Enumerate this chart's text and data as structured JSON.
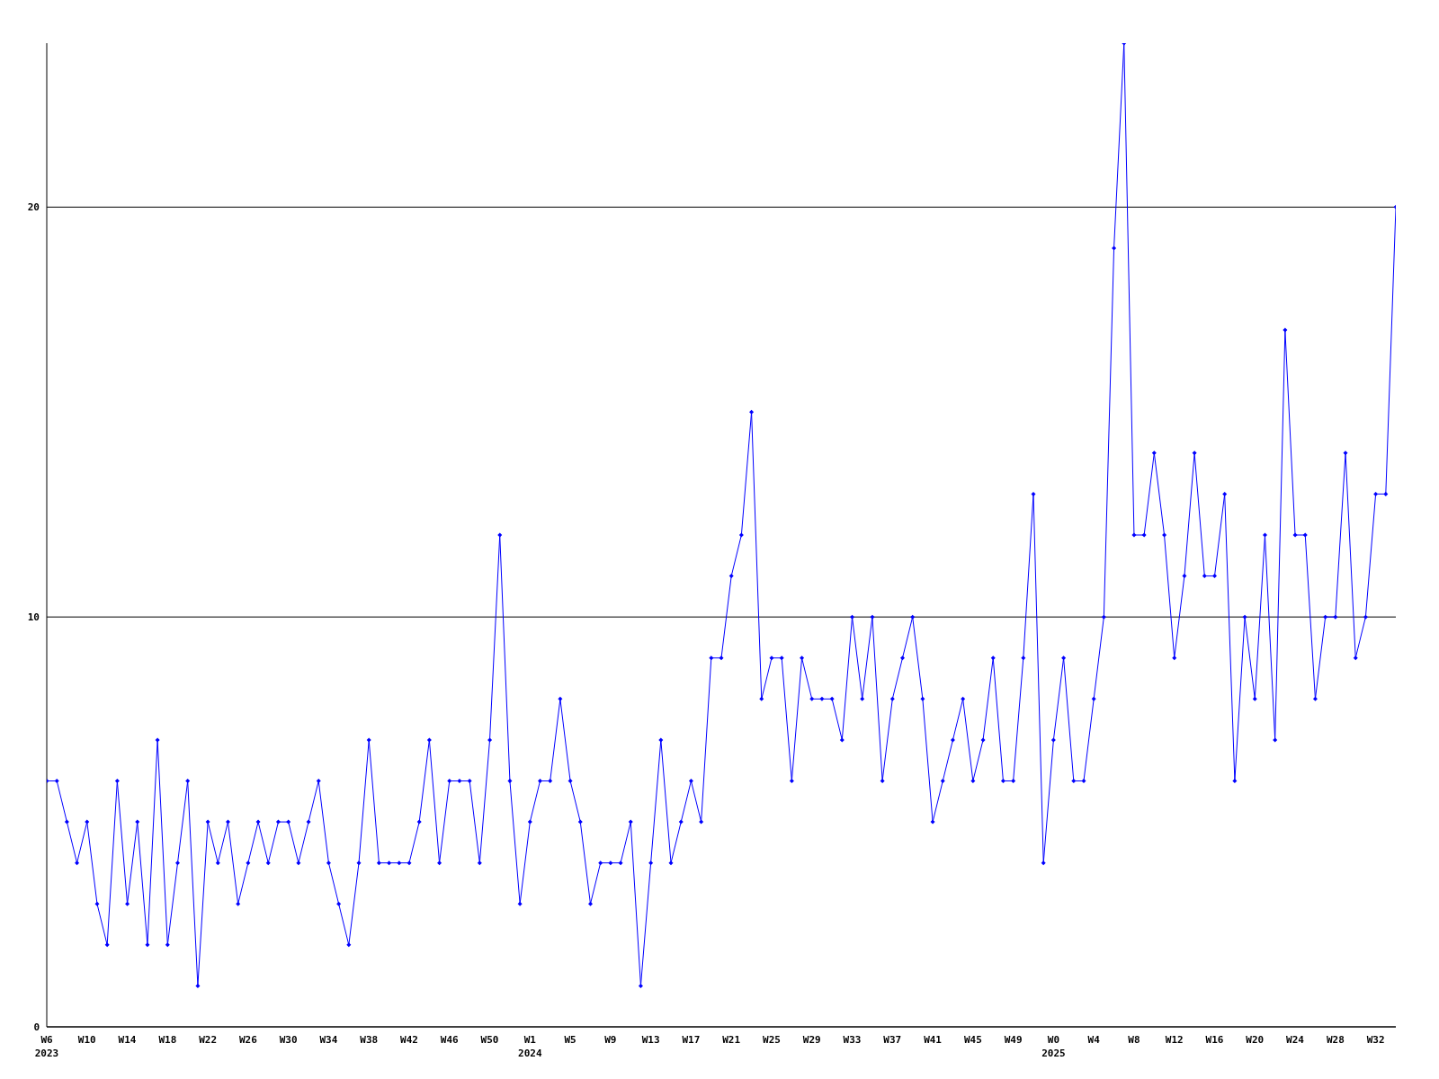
{
  "chart_data": {
    "type": "line",
    "categories": [
      "W6\n2023",
      null,
      null,
      null,
      "W10",
      null,
      null,
      null,
      "W14",
      null,
      null,
      null,
      "W18",
      null,
      null,
      null,
      "W22",
      null,
      null,
      null,
      "W26",
      null,
      null,
      null,
      "W30",
      null,
      null,
      null,
      "W34",
      null,
      null,
      null,
      "W38",
      null,
      null,
      null,
      "W42",
      null,
      null,
      null,
      "W46",
      null,
      null,
      null,
      "W50",
      null,
      null,
      null,
      "W1\n2024",
      null,
      null,
      null,
      "W5",
      null,
      null,
      null,
      "W9",
      null,
      null,
      null,
      "W13",
      null,
      null,
      null,
      "W17",
      null,
      null,
      null,
      "W21",
      null,
      null,
      null,
      "W25",
      null,
      null,
      null,
      "W29",
      null,
      null,
      null,
      "W33",
      null,
      null,
      null,
      "W37",
      null,
      null,
      null,
      "W41",
      null,
      null,
      null,
      "W45",
      null,
      null,
      null,
      "W49",
      null,
      null,
      null,
      "W0\n2025",
      null,
      null,
      null,
      "W4",
      null,
      null,
      null,
      "W8",
      null,
      null,
      null,
      "W12",
      null,
      null,
      null,
      "W16",
      null,
      null,
      null,
      "W20",
      null,
      null,
      null,
      "W24",
      null,
      null,
      null,
      "W28",
      null,
      null,
      null,
      "W32",
      null,
      null
    ],
    "series": [
      {
        "color": "#0000ff",
        "values": [
          6,
          6,
          5,
          4,
          5,
          3,
          2,
          6,
          3,
          5,
          2,
          7,
          2,
          4,
          6,
          1,
          5,
          4,
          5,
          3,
          4,
          5,
          4,
          5,
          5,
          4,
          5,
          6,
          4,
          3,
          2,
          4,
          7,
          4,
          4,
          4,
          4,
          5,
          7,
          4,
          6,
          6,
          6,
          4,
          7,
          12,
          6,
          3,
          5,
          6,
          6,
          8,
          6,
          5,
          3,
          4,
          4,
          4,
          5,
          1,
          4,
          7,
          4,
          5,
          6,
          5,
          9,
          9,
          11,
          12,
          15,
          8,
          9,
          9,
          6,
          9,
          8,
          8,
          8,
          7,
          10,
          8,
          10,
          6,
          8,
          9,
          10,
          8,
          5,
          6,
          7,
          8,
          6,
          7,
          9,
          6,
          6,
          9,
          13,
          4,
          7,
          9,
          6,
          6,
          8,
          10,
          19,
          24,
          12,
          12,
          14,
          12,
          9,
          11,
          14,
          11,
          11,
          13,
          6,
          10,
          8,
          12,
          7,
          17,
          12,
          12,
          8,
          10,
          10,
          14,
          9,
          10,
          13,
          13,
          20
        ]
      }
    ],
    "ylim": [
      0,
      24
    ],
    "yticks": [
      0,
      10,
      20
    ],
    "grid": "y",
    "marker": "diamond",
    "line_style": "solid"
  }
}
